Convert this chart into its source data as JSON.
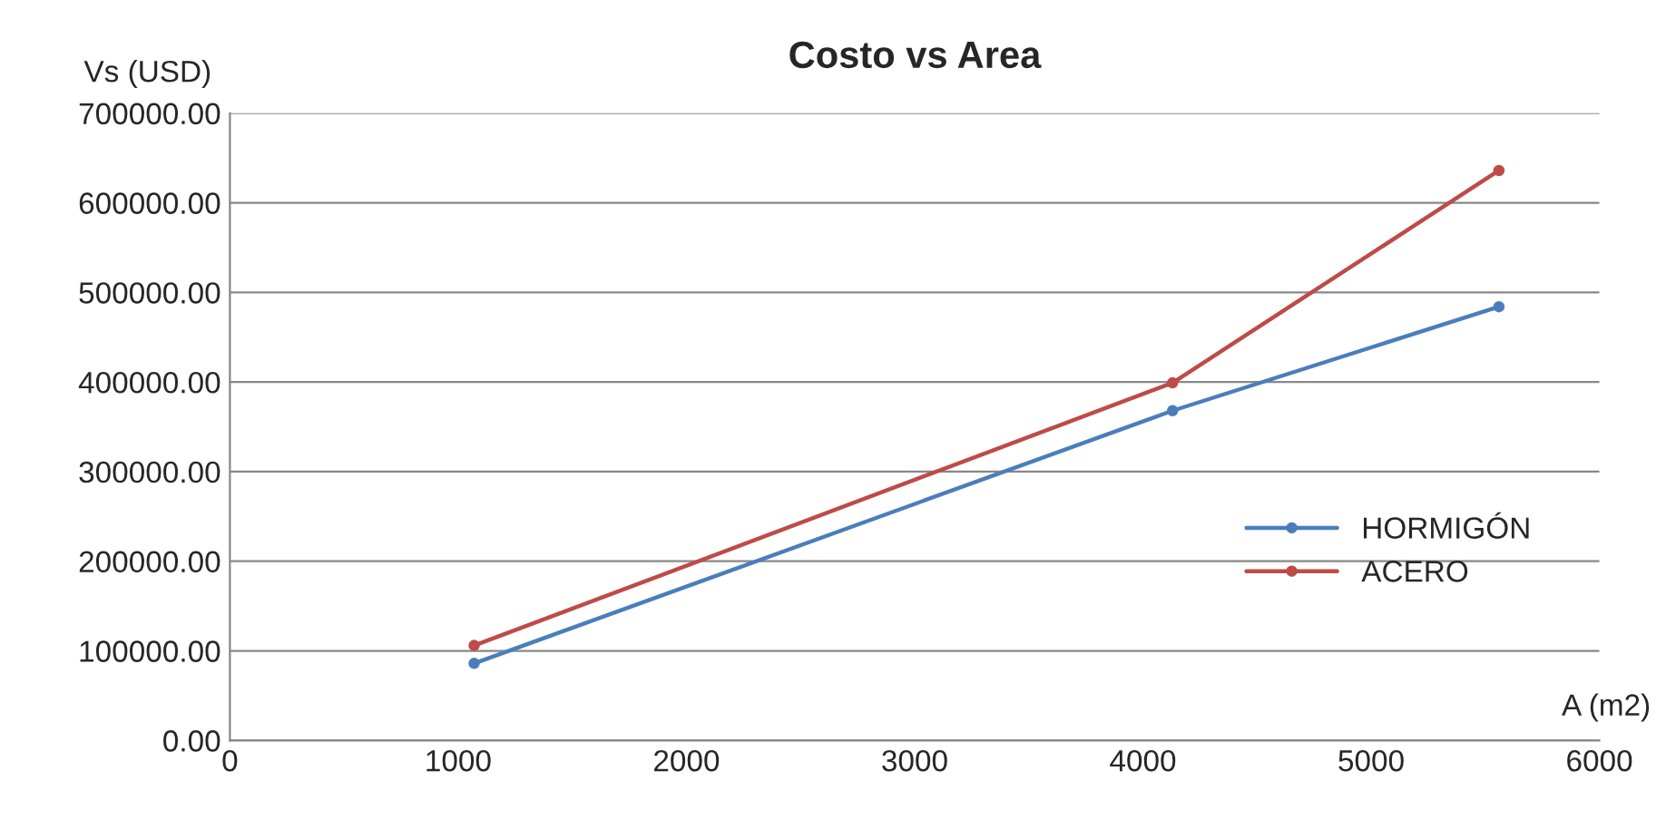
{
  "chart_data": {
    "type": "line",
    "title": "Costo vs Area",
    "xlabel": "A (m2)",
    "ylabel": "Vs (USD)",
    "series": [
      {
        "name": "HORMIGÓN",
        "color": "#4a7ebb",
        "x": [
          1070,
          4130,
          5560
        ],
        "values": [
          86000,
          368000,
          484000
        ]
      },
      {
        "name": "ACERO",
        "color": "#be4b48",
        "x": [
          1070,
          4130,
          5560
        ],
        "values": [
          106000,
          399000,
          636000
        ]
      }
    ],
    "xlim": [
      0,
      6000
    ],
    "xticks": [
      0,
      1000,
      2000,
      3000,
      4000,
      5000,
      6000
    ],
    "ylim": [
      0,
      700000
    ],
    "yticks": [
      {
        "value": 0,
        "label": "0.00"
      },
      {
        "value": 100000,
        "label": "100000.00"
      },
      {
        "value": 200000,
        "label": "200000.00"
      },
      {
        "value": 300000,
        "label": "300000.00"
      },
      {
        "value": 400000,
        "label": "400000.00"
      },
      {
        "value": 500000,
        "label": "500000.00"
      },
      {
        "value": 600000,
        "label": "600000.00"
      },
      {
        "value": 700000,
        "label": "700000.00"
      }
    ],
    "grid": "y",
    "legend": "right",
    "marker": "circle",
    "line_style": "solid"
  }
}
